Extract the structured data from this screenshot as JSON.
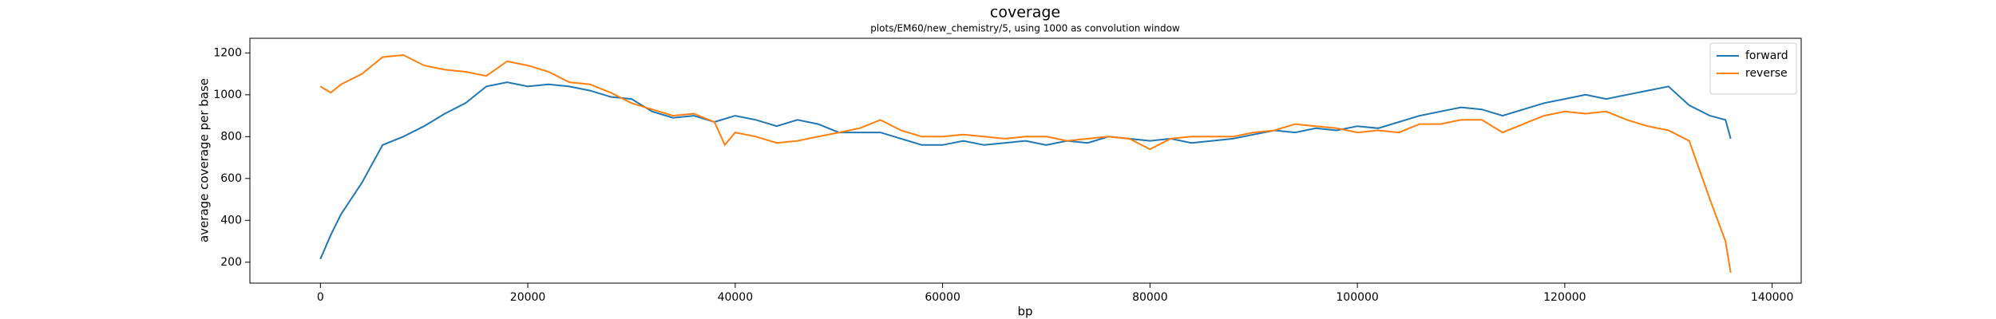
{
  "chart_data": {
    "type": "line",
    "title": "coverage",
    "subtitle": "plots/EM60/new_chemistry/5, using 1000 as convolution window",
    "xlabel": "bp",
    "ylabel": "average coverage per base",
    "x": [
      0,
      1000,
      2000,
      4000,
      6000,
      8000,
      10000,
      12000,
      14000,
      16000,
      18000,
      20000,
      22000,
      24000,
      26000,
      28000,
      30000,
      32000,
      34000,
      36000,
      38000,
      39000,
      40000,
      42000,
      44000,
      46000,
      48000,
      50000,
      52000,
      54000,
      56000,
      58000,
      60000,
      62000,
      64000,
      66000,
      68000,
      70000,
      72000,
      74000,
      76000,
      78000,
      80000,
      82000,
      84000,
      86000,
      88000,
      90000,
      92000,
      94000,
      96000,
      98000,
      100000,
      102000,
      104000,
      106000,
      108000,
      110000,
      112000,
      114000,
      116000,
      118000,
      120000,
      122000,
      124000,
      126000,
      128000,
      130000,
      132000,
      134000,
      135500,
      136000
    ],
    "series": [
      {
        "name": "forward",
        "color": "#1f77b4",
        "values": [
          215,
          330,
          430,
          580,
          760,
          800,
          850,
          910,
          960,
          1040,
          1060,
          1040,
          1050,
          1040,
          1020,
          990,
          980,
          920,
          890,
          900,
          870,
          885,
          900,
          880,
          850,
          880,
          860,
          820,
          820,
          820,
          790,
          760,
          760,
          780,
          760,
          770,
          780,
          760,
          780,
          770,
          800,
          790,
          780,
          790,
          770,
          780,
          790,
          810,
          830,
          820,
          840,
          830,
          850,
          840,
          870,
          900,
          920,
          940,
          930,
          900,
          930,
          960,
          980,
          1000,
          980,
          1000,
          1020,
          1040,
          950,
          900,
          880,
          790
        ]
      },
      {
        "name": "reverse",
        "color": "#ff7f0e",
        "values": [
          1040,
          1010,
          1050,
          1100,
          1180,
          1190,
          1140,
          1120,
          1110,
          1090,
          1160,
          1140,
          1110,
          1060,
          1050,
          1010,
          960,
          930,
          900,
          910,
          870,
          760,
          820,
          800,
          770,
          780,
          800,
          820,
          840,
          880,
          830,
          800,
          800,
          810,
          800,
          790,
          800,
          800,
          780,
          790,
          800,
          790,
          740,
          790,
          800,
          800,
          800,
          820,
          830,
          860,
          850,
          840,
          820,
          830,
          820,
          860,
          860,
          880,
          880,
          820,
          860,
          900,
          920,
          910,
          920,
          880,
          850,
          830,
          780,
          500,
          300,
          150
        ]
      }
    ],
    "xlim": [
      -6800,
      142800
    ],
    "ylim": [
      100,
      1270
    ],
    "xticks": [
      0,
      20000,
      40000,
      60000,
      80000,
      100000,
      120000,
      140000
    ],
    "yticks": [
      200,
      400,
      600,
      800,
      1000,
      1200
    ],
    "legend": "upper right"
  }
}
